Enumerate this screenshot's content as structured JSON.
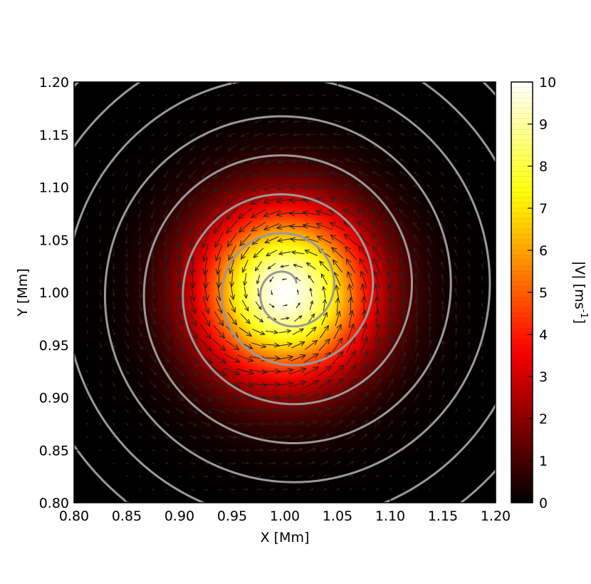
{
  "chart_data": {
    "type": "heatmap",
    "title": "",
    "xlabel": "X [Mm]",
    "ylabel": "Y [Mm]",
    "xlim": [
      0.8,
      1.2
    ],
    "ylim": [
      0.8,
      1.2
    ],
    "xticks": [
      "0.80",
      "0.85",
      "0.90",
      "0.95",
      "1.00",
      "1.05",
      "1.10",
      "1.15",
      "1.20"
    ],
    "yticks": [
      "0.80",
      "0.85",
      "0.90",
      "0.95",
      "1.00",
      "1.05",
      "1.10",
      "1.15",
      "1.20"
    ],
    "field": {
      "quantity": "|V|",
      "center": [
        1.0,
        1.0
      ],
      "peak_value": 10,
      "profile": "gaussian",
      "e_folding_radius_mm": 0.08
    },
    "overlay_vectors": {
      "type": "quiver",
      "pattern": "counter-clockwise swirl",
      "grid_spacing_mm": 0.0125,
      "color": "#222222"
    },
    "overlay_streamline": {
      "type": "spiral",
      "color": "#999999",
      "center": [
        1.0,
        1.0
      ],
      "turn_spacing_mm": 0.037
    },
    "colorbar": {
      "label": "|V| [ms",
      "label_sup": "-1",
      "label_close": "]",
      "min": 0,
      "max": 10,
      "ticks": [
        "0",
        "1",
        "2",
        "3",
        "4",
        "5",
        "6",
        "7",
        "8",
        "9",
        "10"
      ],
      "colormap": "hot"
    },
    "grid": false
  }
}
